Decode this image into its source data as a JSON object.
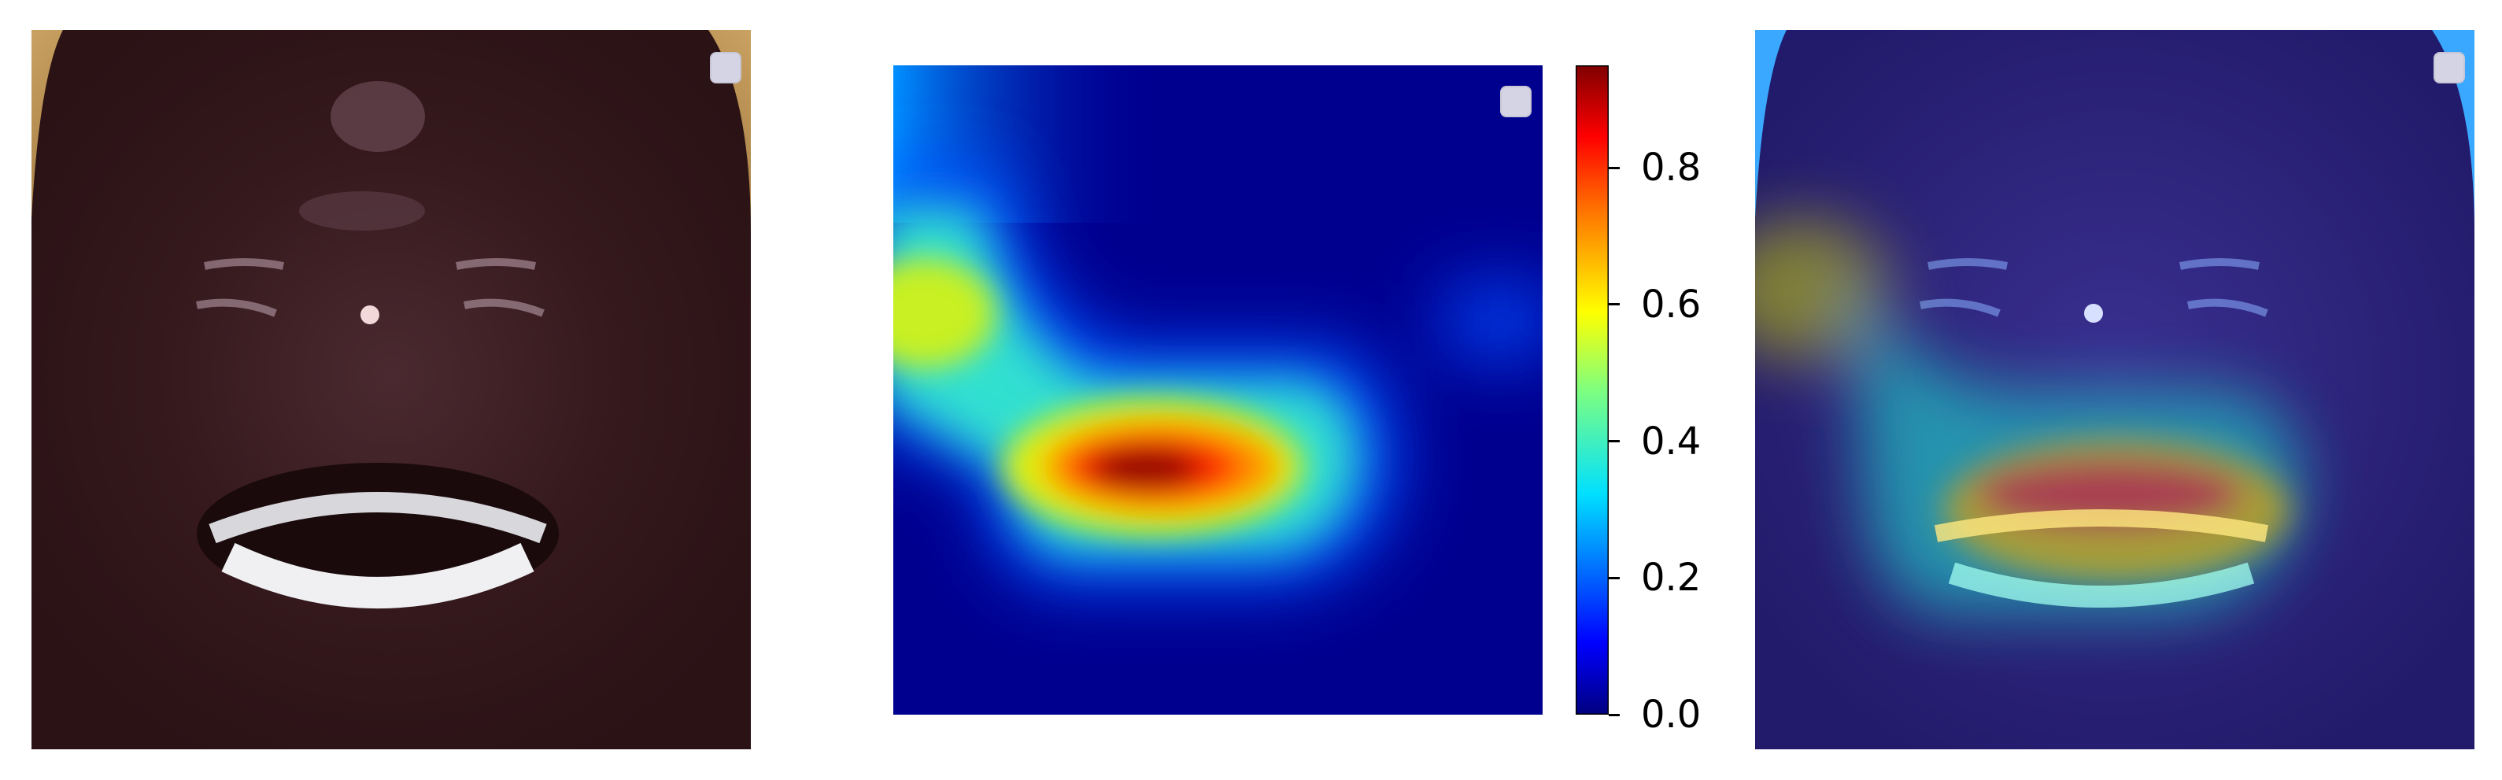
{
  "chart_data": [
    {
      "type": "image",
      "panel": "input-face",
      "legend_entries": []
    },
    {
      "type": "heatmap",
      "panel": "attention-map",
      "colormap": "jet",
      "value_range": [
        0.0,
        0.95
      ],
      "peak_value": 0.95,
      "hotspots": [
        {
          "region": "mouth",
          "value": 0.95
        },
        {
          "region": "left-cheek",
          "value": 0.55
        }
      ],
      "legend_entries": [],
      "colorbar": {
        "ticks": [
          0.0,
          0.2,
          0.4,
          0.6,
          0.8
        ],
        "tick_labels": [
          "0.0",
          "0.2",
          "0.4",
          "0.6",
          "0.8"
        ],
        "range": [
          0.0,
          0.95
        ]
      }
    },
    {
      "type": "image",
      "panel": "overlay",
      "overlay_alpha": 0.5,
      "legend_entries": []
    }
  ]
}
